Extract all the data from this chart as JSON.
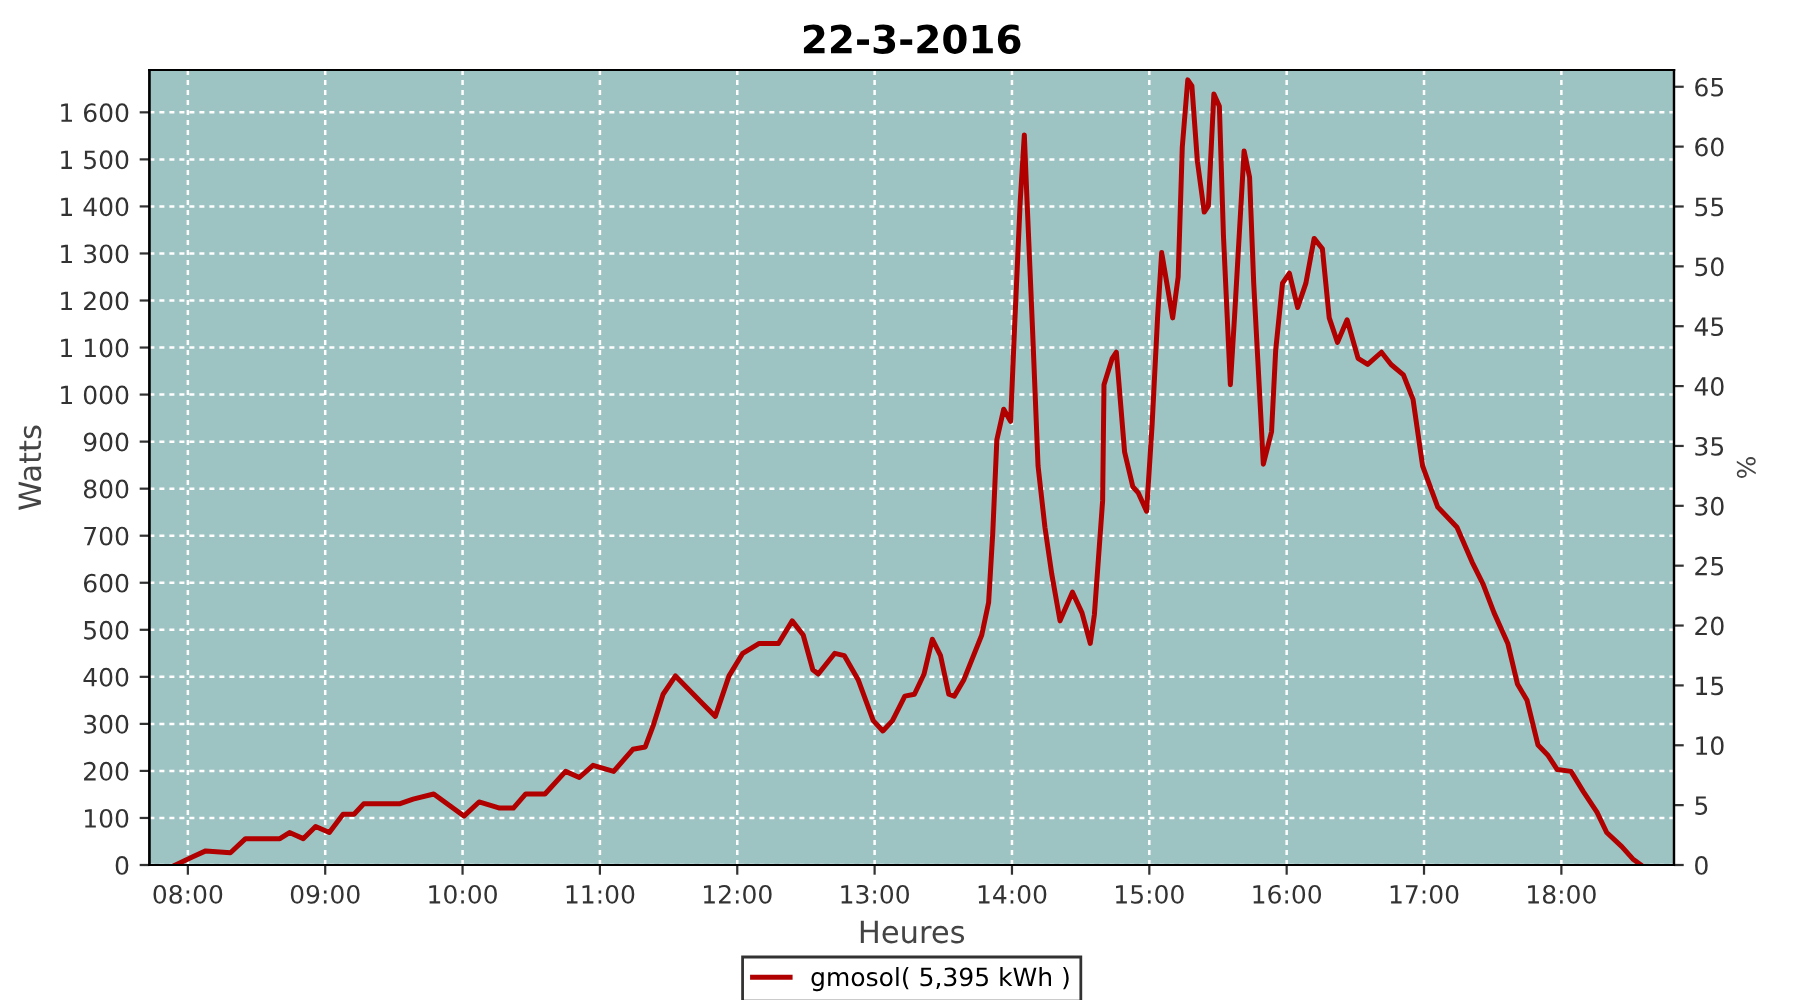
{
  "chart_data": {
    "type": "line",
    "title": "22-3-2016",
    "xlabel": "Heures",
    "ylabel": "Watts",
    "y2label": "%",
    "xlim": [
      7.72,
      18.82
    ],
    "xticks": [
      {
        "value": 8,
        "label": "08:00"
      },
      {
        "value": 9,
        "label": "09:00"
      },
      {
        "value": 10,
        "label": "10:00"
      },
      {
        "value": 11,
        "label": "11:00"
      },
      {
        "value": 12,
        "label": "12:00"
      },
      {
        "value": 13,
        "label": "13:00"
      },
      {
        "value": 14,
        "label": "14:00"
      },
      {
        "value": 15,
        "label": "15:00"
      },
      {
        "value": 16,
        "label": "16:00"
      },
      {
        "value": 17,
        "label": "17:00"
      },
      {
        "value": 18,
        "label": "18:00"
      }
    ],
    "ylim": [
      0,
      1690
    ],
    "yticks": [
      0,
      100,
      200,
      300,
      400,
      500,
      600,
      700,
      800,
      900,
      {
        "value": 1000,
        "label": "1 000"
      },
      {
        "value": 1100,
        "label": "1 100"
      },
      {
        "value": 1200,
        "label": "1 200"
      },
      {
        "value": 1300,
        "label": "1 300"
      },
      {
        "value": 1400,
        "label": "1 400"
      },
      {
        "value": 1500,
        "label": "1 500"
      },
      {
        "value": 1600,
        "label": "1 600"
      }
    ],
    "y2lim": [
      0,
      66.4
    ],
    "y2ticks": [
      0,
      5,
      10,
      15,
      20,
      25,
      30,
      35,
      40,
      45,
      50,
      55,
      60,
      65
    ],
    "grid": true,
    "legend": "bottom",
    "marker": "none",
    "line_style": "solid",
    "series": [
      {
        "name": "gmosol( 5,395 kWh )",
        "color": "#b00000",
        "x": [
          7.91,
          8.04,
          8.13,
          8.31,
          8.42,
          8.67,
          8.74,
          8.84,
          8.93,
          9.03,
          9.13,
          9.21,
          9.28,
          9.54,
          9.64,
          9.79,
          10.01,
          10.12,
          10.27,
          10.37,
          10.46,
          10.6,
          10.75,
          10.85,
          10.95,
          11.1,
          11.24,
          11.33,
          11.39,
          11.46,
          11.55,
          11.65,
          11.75,
          11.84,
          11.94,
          12.04,
          12.16,
          12.3,
          12.4,
          12.48,
          12.55,
          12.59,
          12.71,
          12.78,
          12.88,
          12.99,
          13.06,
          13.13,
          13.22,
          13.29,
          13.36,
          13.42,
          13.48,
          13.54,
          13.58,
          13.65,
          13.78,
          13.83,
          13.86,
          13.89,
          13.94,
          13.99,
          14.02,
          14.06,
          14.09,
          14.11,
          14.15,
          14.19,
          14.24,
          14.29,
          14.35,
          14.44,
          14.51,
          14.57,
          14.6,
          14.66,
          14.67,
          14.73,
          14.76,
          14.82,
          14.88,
          14.92,
          14.98,
          15.02,
          15.06,
          15.09,
          15.11,
          15.17,
          15.21,
          15.24,
          15.28,
          15.31,
          15.35,
          15.4,
          15.43,
          15.47,
          15.51,
          15.54,
          15.59,
          15.62,
          15.66,
          15.69,
          15.73,
          15.76,
          15.81,
          15.83,
          15.89,
          15.92,
          15.97,
          16.02,
          16.08,
          16.14,
          16.2,
          16.26,
          16.31,
          16.37,
          16.44,
          16.52,
          16.59,
          16.69,
          16.76,
          16.85,
          16.92,
          16.99,
          17.1,
          17.24,
          17.35,
          17.43,
          17.51,
          17.61,
          17.68,
          17.75,
          17.83,
          17.9,
          17.97,
          18.07,
          18.16,
          18.26,
          18.33,
          18.44,
          18.52,
          18.58
        ],
        "values": [
          0,
          18,
          30,
          26,
          56,
          56,
          69,
          56,
          82,
          69,
          108,
          108,
          130,
          130,
          140,
          151,
          104,
          134,
          121,
          121,
          151,
          151,
          199,
          186,
          212,
          199,
          246,
          251,
          298,
          363,
          402,
          372,
          342,
          316,
          402,
          450,
          471,
          471,
          519,
          489,
          415,
          406,
          450,
          445,
          394,
          307,
          285,
          307,
          359,
          363,
          406,
          480,
          445,
          363,
          359,
          394,
          489,
          558,
          705,
          904,
          969,
          943,
          1150,
          1410,
          1552,
          1410,
          1137,
          848,
          718,
          618,
          519,
          580,
          536,
          471,
          532,
          774,
          1021,
          1077,
          1090,
          878,
          804,
          791,
          752,
          934,
          1163,
          1302,
          1267,
          1163,
          1250,
          1526,
          1669,
          1656,
          1496,
          1388,
          1401,
          1639,
          1613,
          1336,
          1021,
          1163,
          1366,
          1518,
          1462,
          1237,
          964,
          852,
          921,
          1094,
          1237,
          1258,
          1185,
          1237,
          1332,
          1310,
          1163,
          1111,
          1159,
          1077,
          1064,
          1090,
          1064,
          1042,
          990,
          848,
          761,
          718,
          644,
          597,
          536,
          471,
          385,
          350,
          255,
          234,
          203,
          199,
          156,
          112,
          69,
          39,
          13,
          0
        ]
      }
    ]
  }
}
